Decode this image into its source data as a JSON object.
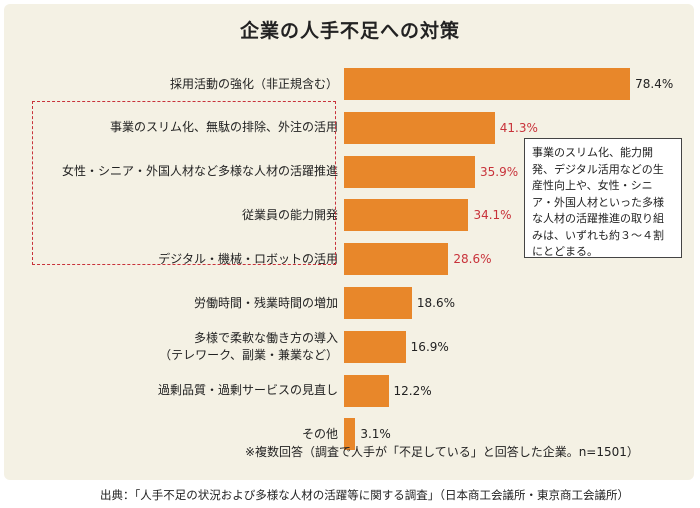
{
  "chart_data": {
    "type": "bar",
    "orientation": "horizontal",
    "title": "企業の人手不足への対策",
    "categories": [
      "採用活動の強化（非正規含む）",
      "事業のスリム化、無駄の排除、外注の活用",
      "女性・シニア・外国人材など多様な人材の活躍推進",
      "従業員の能力開発",
      "デジタル・機械・ロボットの活用",
      "労働時間・残業時間の増加",
      "多様で柔軟な働き方の導入\n（テレワーク、副業・兼業など）",
      "過剰品質・過剰サービスの見直し",
      "その他"
    ],
    "values": [
      78.4,
      41.3,
      35.9,
      34.1,
      28.6,
      18.6,
      16.9,
      12.2,
      3.1
    ],
    "value_labels": [
      "78.4%",
      "41.3%",
      "35.9%",
      "34.1%",
      "28.6%",
      "18.6%",
      "16.9%",
      "12.2%",
      "3.1%"
    ],
    "highlighted": [
      false,
      true,
      true,
      true,
      true,
      false,
      false,
      false,
      false
    ],
    "unit": "%",
    "grid": false,
    "legend": "none",
    "bar_color": "#e8872a",
    "highlight_color": "#c8323a",
    "annotation": "事業のスリム化、能力開発、デジタル活用などの生産性向上や、女性・シニア・外国人材といった多様な人材の活躍推進の取り組みは、いずれも約３～４割にとどまる。",
    "footnote": "※複数回答（調査で人手が「不足している」と回答した企業。n=1501）"
  },
  "source": "出典：「人手不足の状況および多様な人材の活躍等に関する調査」（日本商工会議所・東京商工会議所）"
}
